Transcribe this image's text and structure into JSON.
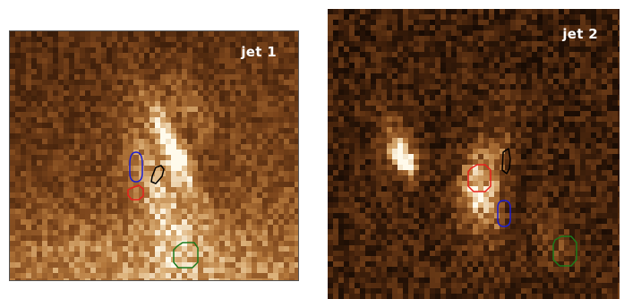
{
  "panels": [
    {
      "label": "jet 1"
    },
    {
      "label": "jet 2"
    }
  ],
  "colors": {
    "region_red": "#e8211d",
    "region_blue": "#1d1fd0",
    "region_black": "#000000",
    "region_green": "#1c7a1c"
  }
}
